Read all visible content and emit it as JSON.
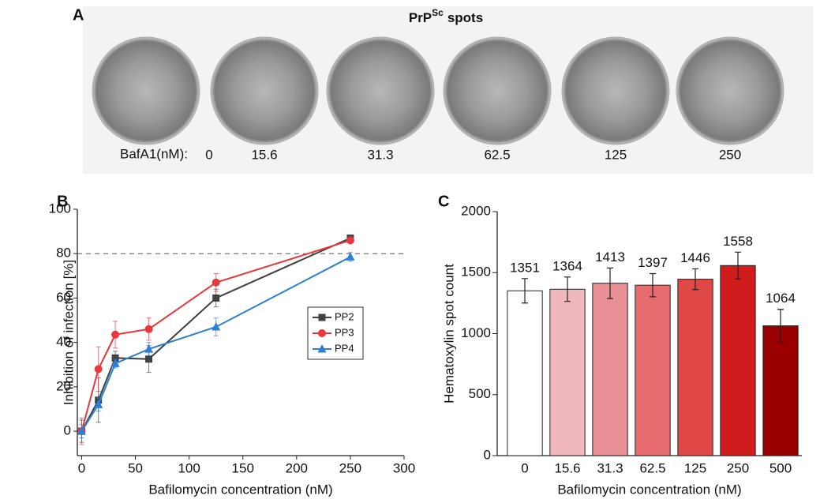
{
  "panel_a": {
    "label": "A",
    "title_main": "PrP",
    "title_sup": "Sc",
    "title_rest": "spots",
    "row_label": "BafA1(nM):",
    "concentrations": [
      "0",
      "15.6",
      "31.3",
      "62.5",
      "125",
      "250"
    ]
  },
  "chart_data": [
    {
      "type": "line",
      "panel_label": "B",
      "xlabel": "Bafilomycin concentration (nM)",
      "ylabel": "Inhibition of infection [%]",
      "x": [
        0,
        15.6,
        31.3,
        62.5,
        125,
        250
      ],
      "series": [
        {
          "name": "PP2",
          "color": "#404040",
          "marker": "square",
          "values": [
            0,
            14,
            33,
            32.5,
            60,
            87
          ],
          "errors": [
            5,
            10,
            3,
            6,
            4,
            1
          ]
        },
        {
          "name": "PP3",
          "color": "#e8383d",
          "marker": "circle",
          "values": [
            0,
            28,
            43.5,
            46,
            67,
            86
          ],
          "errors": [
            6,
            10,
            6,
            5,
            4,
            1
          ]
        },
        {
          "name": "PP4",
          "color": "#2c7fd6",
          "marker": "triangle",
          "values": [
            0,
            12,
            30.5,
            37,
            47,
            78.5
          ],
          "errors": [
            3,
            3,
            2,
            3,
            4,
            2
          ]
        }
      ],
      "xlim": [
        -4,
        300
      ],
      "ylim": [
        -11,
        100
      ],
      "xticks": [
        0,
        50,
        100,
        150,
        200,
        250,
        300
      ],
      "yticks": [
        0,
        20,
        40,
        60,
        80,
        100
      ],
      "hline": 80,
      "legend": "center right"
    },
    {
      "type": "bar",
      "panel_label": "C",
      "xlabel": "Bafilomycin concentration (nM)",
      "ylabel": "Hematoxylin spot count",
      "categories": [
        "0",
        "15.6",
        "31.3",
        "62.5",
        "125",
        "250",
        "500"
      ],
      "values": [
        1351,
        1364,
        1413,
        1397,
        1446,
        1558,
        1064
      ],
      "errors": [
        100,
        100,
        125,
        95,
        85,
        110,
        135
      ],
      "colors": [
        "#ffffff",
        "#f0b8bd",
        "#e89096",
        "#e76c6f",
        "#e04848",
        "#d01c1c",
        "#9a0000"
      ],
      "ylim": [
        0,
        2000
      ],
      "yticks": [
        0,
        500,
        1000,
        1500,
        2000
      ],
      "data_labels": true
    }
  ]
}
